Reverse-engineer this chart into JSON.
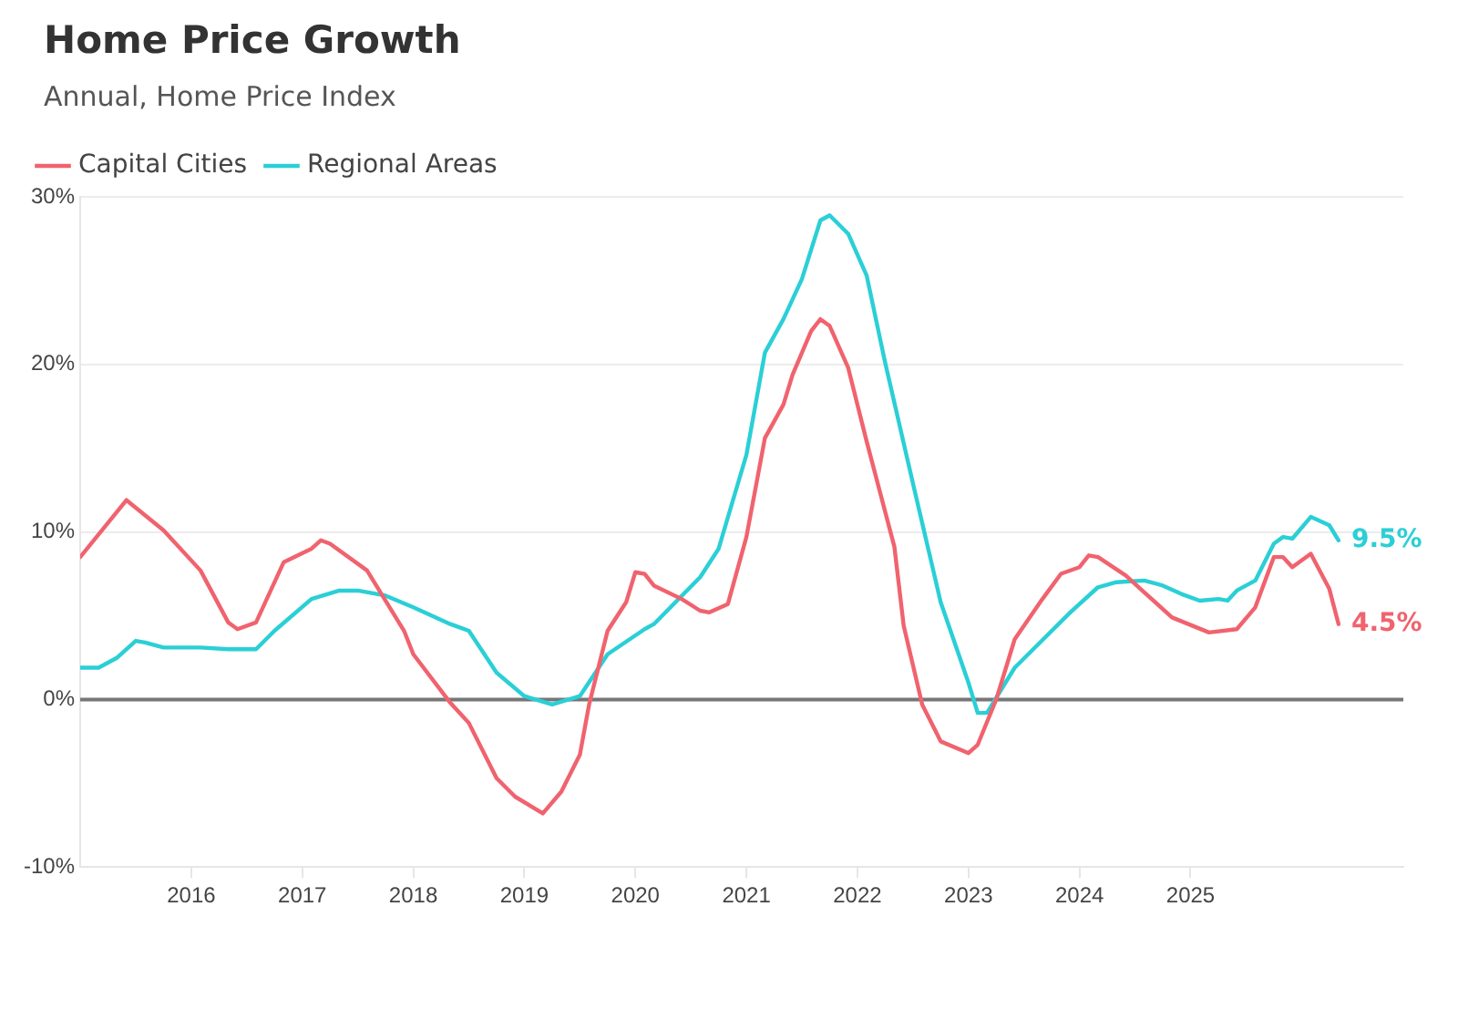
{
  "chart_data": {
    "type": "line",
    "title": "Home Price Growth",
    "subtitle": "Annual, Home Price Index",
    "xlim": [
      "2015-01",
      "2026-12"
    ],
    "xticks": [
      "2016",
      "2017",
      "2018",
      "2019",
      "2020",
      "2021",
      "2022",
      "2023",
      "2024",
      "2025"
    ],
    "ylim": [
      -10,
      30
    ],
    "yticks": [
      {
        "value": -10,
        "label": "-10%"
      },
      {
        "value": 0,
        "label": "0%"
      },
      {
        "value": 10,
        "label": "10%"
      },
      {
        "value": 20,
        "label": "20%"
      },
      {
        "value": 30,
        "label": "30%"
      }
    ],
    "grid": "y",
    "legend": "top left",
    "marker": "none",
    "line_style": "solid",
    "ref_lines": [
      {
        "axis": "y",
        "value": 0,
        "color": "#777777"
      }
    ],
    "series": [
      {
        "name": "Capital Cities",
        "color": "#f0636e",
        "x": [
          "2015-01",
          "2015-06",
          "2015-10",
          "2016-02",
          "2016-05",
          "2016-06",
          "2016-08",
          "2016-11",
          "2017-02",
          "2017-03",
          "2017-04",
          "2017-08",
          "2017-12",
          "2018-01",
          "2018-05",
          "2018-07",
          "2018-10",
          "2018-12",
          "2019-03",
          "2019-05",
          "2019-07",
          "2019-08",
          "2019-10",
          "2019-12",
          "2020-01",
          "2020-02",
          "2020-03",
          "2020-06",
          "2020-08",
          "2020-09",
          "2020-11",
          "2021-01",
          "2021-03",
          "2021-05",
          "2021-06",
          "2021-08",
          "2021-09",
          "2021-10",
          "2021-12",
          "2022-02",
          "2022-05",
          "2022-06",
          "2022-08",
          "2022-10",
          "2023-01",
          "2023-02",
          "2023-04",
          "2023-06",
          "2023-09",
          "2023-11",
          "2024-01",
          "2024-02",
          "2024-03",
          "2024-06",
          "2024-08",
          "2024-11",
          "2025-03",
          "2025-06",
          "2025-08",
          "2025-10",
          "2025-11",
          "2025-12",
          "2026-02",
          "2026-04",
          "2026-05"
        ],
        "values": [
          8.5,
          11.9,
          10.1,
          7.7,
          4.6,
          4.2,
          4.6,
          8.2,
          9.0,
          9.5,
          9.3,
          7.7,
          4.1,
          2.7,
          -0.2,
          -1.4,
          -4.7,
          -5.8,
          -6.8,
          -5.5,
          -3.3,
          -0.3,
          4.1,
          5.8,
          7.6,
          7.5,
          6.8,
          6.0,
          5.3,
          5.2,
          5.7,
          9.7,
          15.6,
          17.6,
          19.4,
          22.0,
          22.7,
          22.3,
          19.8,
          15.4,
          9.1,
          4.4,
          -0.3,
          -2.5,
          -3.2,
          -2.7,
          0,
          3.6,
          6.0,
          7.5,
          7.9,
          8.6,
          8.5,
          7.4,
          6.4,
          4.9,
          4.0,
          4.2,
          5.5,
          8.5,
          8.5,
          7.9,
          8.7,
          6.6,
          4.5
        ],
        "value_labels": [
          null,
          null,
          null,
          null,
          null,
          null,
          null,
          null,
          null,
          null,
          null,
          null,
          null,
          null,
          null,
          null,
          null,
          null,
          null,
          null,
          null,
          null,
          null,
          null,
          null,
          null,
          null,
          null,
          null,
          null,
          null,
          null,
          null,
          null,
          null,
          null,
          null,
          null,
          null,
          null,
          null,
          null,
          null,
          null,
          null,
          null,
          null,
          null,
          null,
          null,
          null,
          null,
          null,
          null,
          null,
          null,
          null,
          null,
          null,
          null,
          null,
          null,
          null,
          null,
          "4.5%"
        ]
      },
      {
        "name": "Regional Areas",
        "color": "#2bcfd6",
        "x": [
          "2015-01",
          "2015-03",
          "2015-05",
          "2015-07",
          "2015-08",
          "2015-10",
          "2016-02",
          "2016-05",
          "2016-08",
          "2016-10",
          "2017-02",
          "2017-05",
          "2017-07",
          "2017-10",
          "2018-01",
          "2018-05",
          "2018-07",
          "2018-10",
          "2019-01",
          "2019-04",
          "2019-07",
          "2019-10",
          "2020-02",
          "2020-03",
          "2020-08",
          "2020-10",
          "2021-01",
          "2021-03",
          "2021-05",
          "2021-07",
          "2021-09",
          "2021-10",
          "2021-12",
          "2022-02",
          "2022-04",
          "2022-07",
          "2022-10",
          "2023-01",
          "2023-02",
          "2023-03",
          "2023-06",
          "2023-08",
          "2023-12",
          "2024-03",
          "2024-05",
          "2024-08",
          "2024-10",
          "2024-12",
          "2025-02",
          "2025-04",
          "2025-05",
          "2025-06",
          "2025-08",
          "2025-10",
          "2025-11",
          "2025-12",
          "2026-02",
          "2026-04",
          "2026-05"
        ],
        "values": [
          1.9,
          1.9,
          2.5,
          3.5,
          3.4,
          3.1,
          3.1,
          3.0,
          3.0,
          4.1,
          6.0,
          6.5,
          6.5,
          6.2,
          5.5,
          4.5,
          4.1,
          1.6,
          0.2,
          -0.3,
          0.2,
          2.7,
          4.2,
          4.5,
          7.3,
          9.0,
          14.6,
          20.7,
          22.7,
          25.1,
          28.6,
          28.9,
          27.8,
          25.3,
          20.1,
          12.9,
          5.8,
          1.0,
          -0.8,
          -0.8,
          1.9,
          3.0,
          5.2,
          6.7,
          7.0,
          7.1,
          6.8,
          6.3,
          5.9,
          6.0,
          5.9,
          6.5,
          7.1,
          9.3,
          9.7,
          9.6,
          10.9,
          10.4,
          9.5
        ],
        "value_labels": [
          null,
          null,
          null,
          null,
          null,
          null,
          null,
          null,
          null,
          null,
          null,
          null,
          null,
          null,
          null,
          null,
          null,
          null,
          null,
          null,
          null,
          null,
          null,
          null,
          null,
          null,
          null,
          null,
          null,
          null,
          null,
          null,
          null,
          null,
          null,
          null,
          null,
          null,
          null,
          null,
          null,
          null,
          null,
          null,
          null,
          null,
          null,
          null,
          null,
          null,
          null,
          null,
          null,
          null,
          null,
          null,
          null,
          null,
          "9.5%"
        ]
      }
    ]
  }
}
